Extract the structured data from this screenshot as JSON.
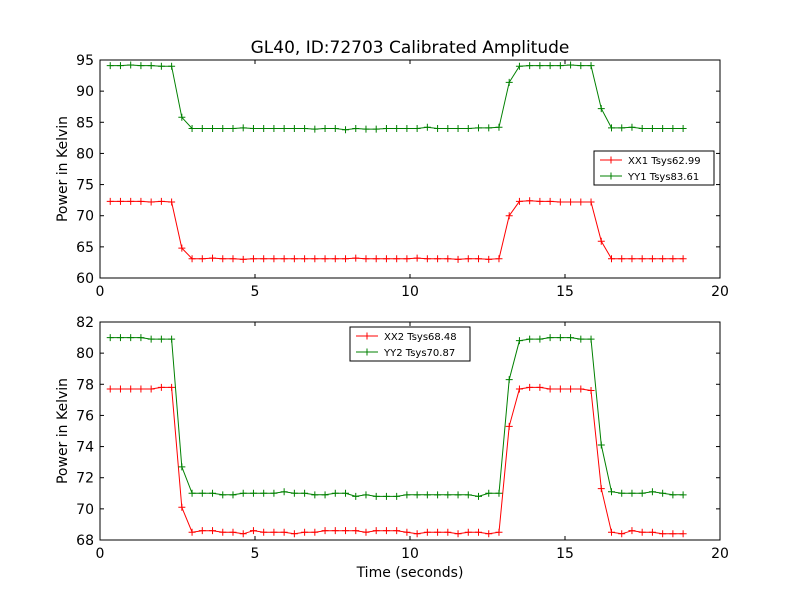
{
  "chart_data": {
    "title": "GL40, ID:72703 Calibrated Amplitude",
    "xlabel": "Time (seconds)",
    "subplots": [
      {
        "type": "line",
        "ylabel": "Power in Kelvin",
        "xlim": [
          0,
          20
        ],
        "ylim": [
          60,
          95
        ],
        "xticks": [
          "0",
          "5",
          "10",
          "15",
          "20"
        ],
        "yticks": [
          "60",
          "65",
          "70",
          "75",
          "80",
          "85",
          "90",
          "95"
        ],
        "legend_position": "center-right",
        "series": [
          {
            "name": "XX1 Tsys62.99",
            "color": "#ff0000",
            "x": [
              0.33,
              0.66,
              0.99,
              1.32,
              1.65,
              1.98,
              2.31,
              2.64,
              2.97,
              3.3,
              3.63,
              3.96,
              4.29,
              4.62,
              4.95,
              5.28,
              5.61,
              5.94,
              6.27,
              6.6,
              6.93,
              7.26,
              7.59,
              7.92,
              8.25,
              8.58,
              8.91,
              9.24,
              9.57,
              9.9,
              10.23,
              10.56,
              10.89,
              11.22,
              11.55,
              11.88,
              12.21,
              12.54,
              12.87,
              13.2,
              13.53,
              13.86,
              14.19,
              14.52,
              14.85,
              15.18,
              15.51,
              15.84,
              16.17,
              16.5,
              16.83,
              17.16,
              17.49,
              17.82,
              18.15,
              18.48,
              18.81
            ],
            "y": [
              72.3,
              72.3,
              72.3,
              72.3,
              72.2,
              72.3,
              72.2,
              64.8,
              63.1,
              63.1,
              63.2,
              63.1,
              63.1,
              63.0,
              63.1,
              63.1,
              63.1,
              63.1,
              63.1,
              63.1,
              63.1,
              63.1,
              63.1,
              63.1,
              63.2,
              63.1,
              63.1,
              63.1,
              63.1,
              63.1,
              63.2,
              63.1,
              63.1,
              63.1,
              63.0,
              63.1,
              63.1,
              63.0,
              63.1,
              70.0,
              72.3,
              72.4,
              72.3,
              72.3,
              72.2,
              72.2,
              72.2,
              72.2,
              65.9,
              63.1,
              63.1,
              63.1,
              63.1,
              63.1,
              63.1,
              63.1,
              63.1
            ]
          },
          {
            "name": "YY1 Tsys83.61",
            "color": "#008000",
            "x": [
              0.33,
              0.66,
              0.99,
              1.32,
              1.65,
              1.98,
              2.31,
              2.64,
              2.97,
              3.3,
              3.63,
              3.96,
              4.29,
              4.62,
              4.95,
              5.28,
              5.61,
              5.94,
              6.27,
              6.6,
              6.93,
              7.26,
              7.59,
              7.92,
              8.25,
              8.58,
              8.91,
              9.24,
              9.57,
              9.9,
              10.23,
              10.56,
              10.89,
              11.22,
              11.55,
              11.88,
              12.21,
              12.54,
              12.87,
              13.2,
              13.53,
              13.86,
              14.19,
              14.52,
              14.85,
              15.18,
              15.51,
              15.84,
              16.17,
              16.5,
              16.83,
              17.16,
              17.49,
              17.82,
              18.15,
              18.48,
              18.81
            ],
            "y": [
              94.1,
              94.1,
              94.2,
              94.1,
              94.1,
              94.0,
              94.0,
              85.8,
              84.0,
              84.0,
              84.0,
              84.0,
              84.0,
              84.1,
              84.0,
              84.0,
              84.0,
              84.0,
              84.0,
              84.0,
              83.9,
              84.0,
              84.0,
              83.8,
              84.0,
              83.9,
              83.9,
              84.0,
              84.0,
              84.0,
              84.0,
              84.2,
              84.0,
              84.0,
              84.0,
              84.0,
              84.1,
              84.1,
              84.2,
              91.4,
              94.0,
              94.1,
              94.1,
              94.1,
              94.1,
              94.2,
              94.1,
              94.1,
              87.2,
              84.1,
              84.1,
              84.2,
              84.0,
              84.0,
              84.0,
              84.0,
              84.0
            ]
          }
        ]
      },
      {
        "type": "line",
        "ylabel": "Power in Kelvin",
        "xlim": [
          0,
          20
        ],
        "ylim": [
          68,
          82
        ],
        "xticks": [
          "0",
          "5",
          "10",
          "15",
          "20"
        ],
        "yticks": [
          "68",
          "70",
          "72",
          "74",
          "76",
          "78",
          "80",
          "82"
        ],
        "legend_position": "upper-center",
        "series": [
          {
            "name": "XX2 Tsys68.48",
            "color": "#ff0000",
            "x": [
              0.33,
              0.66,
              0.99,
              1.32,
              1.65,
              1.98,
              2.31,
              2.64,
              2.97,
              3.3,
              3.63,
              3.96,
              4.29,
              4.62,
              4.95,
              5.28,
              5.61,
              5.94,
              6.27,
              6.6,
              6.93,
              7.26,
              7.59,
              7.92,
              8.25,
              8.58,
              8.91,
              9.24,
              9.57,
              9.9,
              10.23,
              10.56,
              10.89,
              11.22,
              11.55,
              11.88,
              12.21,
              12.54,
              12.87,
              13.2,
              13.53,
              13.86,
              14.19,
              14.52,
              14.85,
              15.18,
              15.51,
              15.84,
              16.17,
              16.5,
              16.83,
              17.16,
              17.49,
              17.82,
              18.15,
              18.48,
              18.81
            ],
            "y": [
              77.7,
              77.7,
              77.7,
              77.7,
              77.7,
              77.8,
              77.8,
              70.1,
              68.5,
              68.6,
              68.6,
              68.5,
              68.5,
              68.4,
              68.6,
              68.5,
              68.5,
              68.5,
              68.4,
              68.5,
              68.5,
              68.6,
              68.6,
              68.6,
              68.6,
              68.5,
              68.6,
              68.6,
              68.6,
              68.5,
              68.4,
              68.5,
              68.5,
              68.5,
              68.4,
              68.5,
              68.5,
              68.4,
              68.5,
              75.3,
              77.7,
              77.8,
              77.8,
              77.7,
              77.7,
              77.7,
              77.7,
              77.6,
              71.3,
              68.5,
              68.4,
              68.6,
              68.5,
              68.5,
              68.4,
              68.4,
              68.4
            ]
          },
          {
            "name": "YY2 Tsys70.87",
            "color": "#008000",
            "x": [
              0.33,
              0.66,
              0.99,
              1.32,
              1.65,
              1.98,
              2.31,
              2.64,
              2.97,
              3.3,
              3.63,
              3.96,
              4.29,
              4.62,
              4.95,
              5.28,
              5.61,
              5.94,
              6.27,
              6.6,
              6.93,
              7.26,
              7.59,
              7.92,
              8.25,
              8.58,
              8.91,
              9.24,
              9.57,
              9.9,
              10.23,
              10.56,
              10.89,
              11.22,
              11.55,
              11.88,
              12.21,
              12.54,
              12.87,
              13.2,
              13.53,
              13.86,
              14.19,
              14.52,
              14.85,
              15.18,
              15.51,
              15.84,
              16.17,
              16.5,
              16.83,
              17.16,
              17.49,
              17.82,
              18.15,
              18.48,
              18.81
            ],
            "y": [
              81.0,
              81.0,
              81.0,
              81.0,
              80.9,
              80.9,
              80.9,
              72.7,
              71.0,
              71.0,
              71.0,
              70.9,
              70.9,
              71.0,
              71.0,
              71.0,
              71.0,
              71.1,
              71.0,
              71.0,
              70.9,
              70.9,
              71.0,
              71.0,
              70.8,
              70.9,
              70.8,
              70.8,
              70.8,
              70.9,
              70.9,
              70.9,
              70.9,
              70.9,
              70.9,
              70.9,
              70.8,
              71.0,
              71.0,
              78.3,
              80.8,
              80.9,
              80.9,
              81.0,
              81.0,
              81.0,
              80.9,
              80.9,
              74.1,
              71.1,
              71.0,
              71.0,
              71.0,
              71.1,
              71.0,
              70.9,
              70.9
            ]
          }
        ]
      }
    ]
  }
}
